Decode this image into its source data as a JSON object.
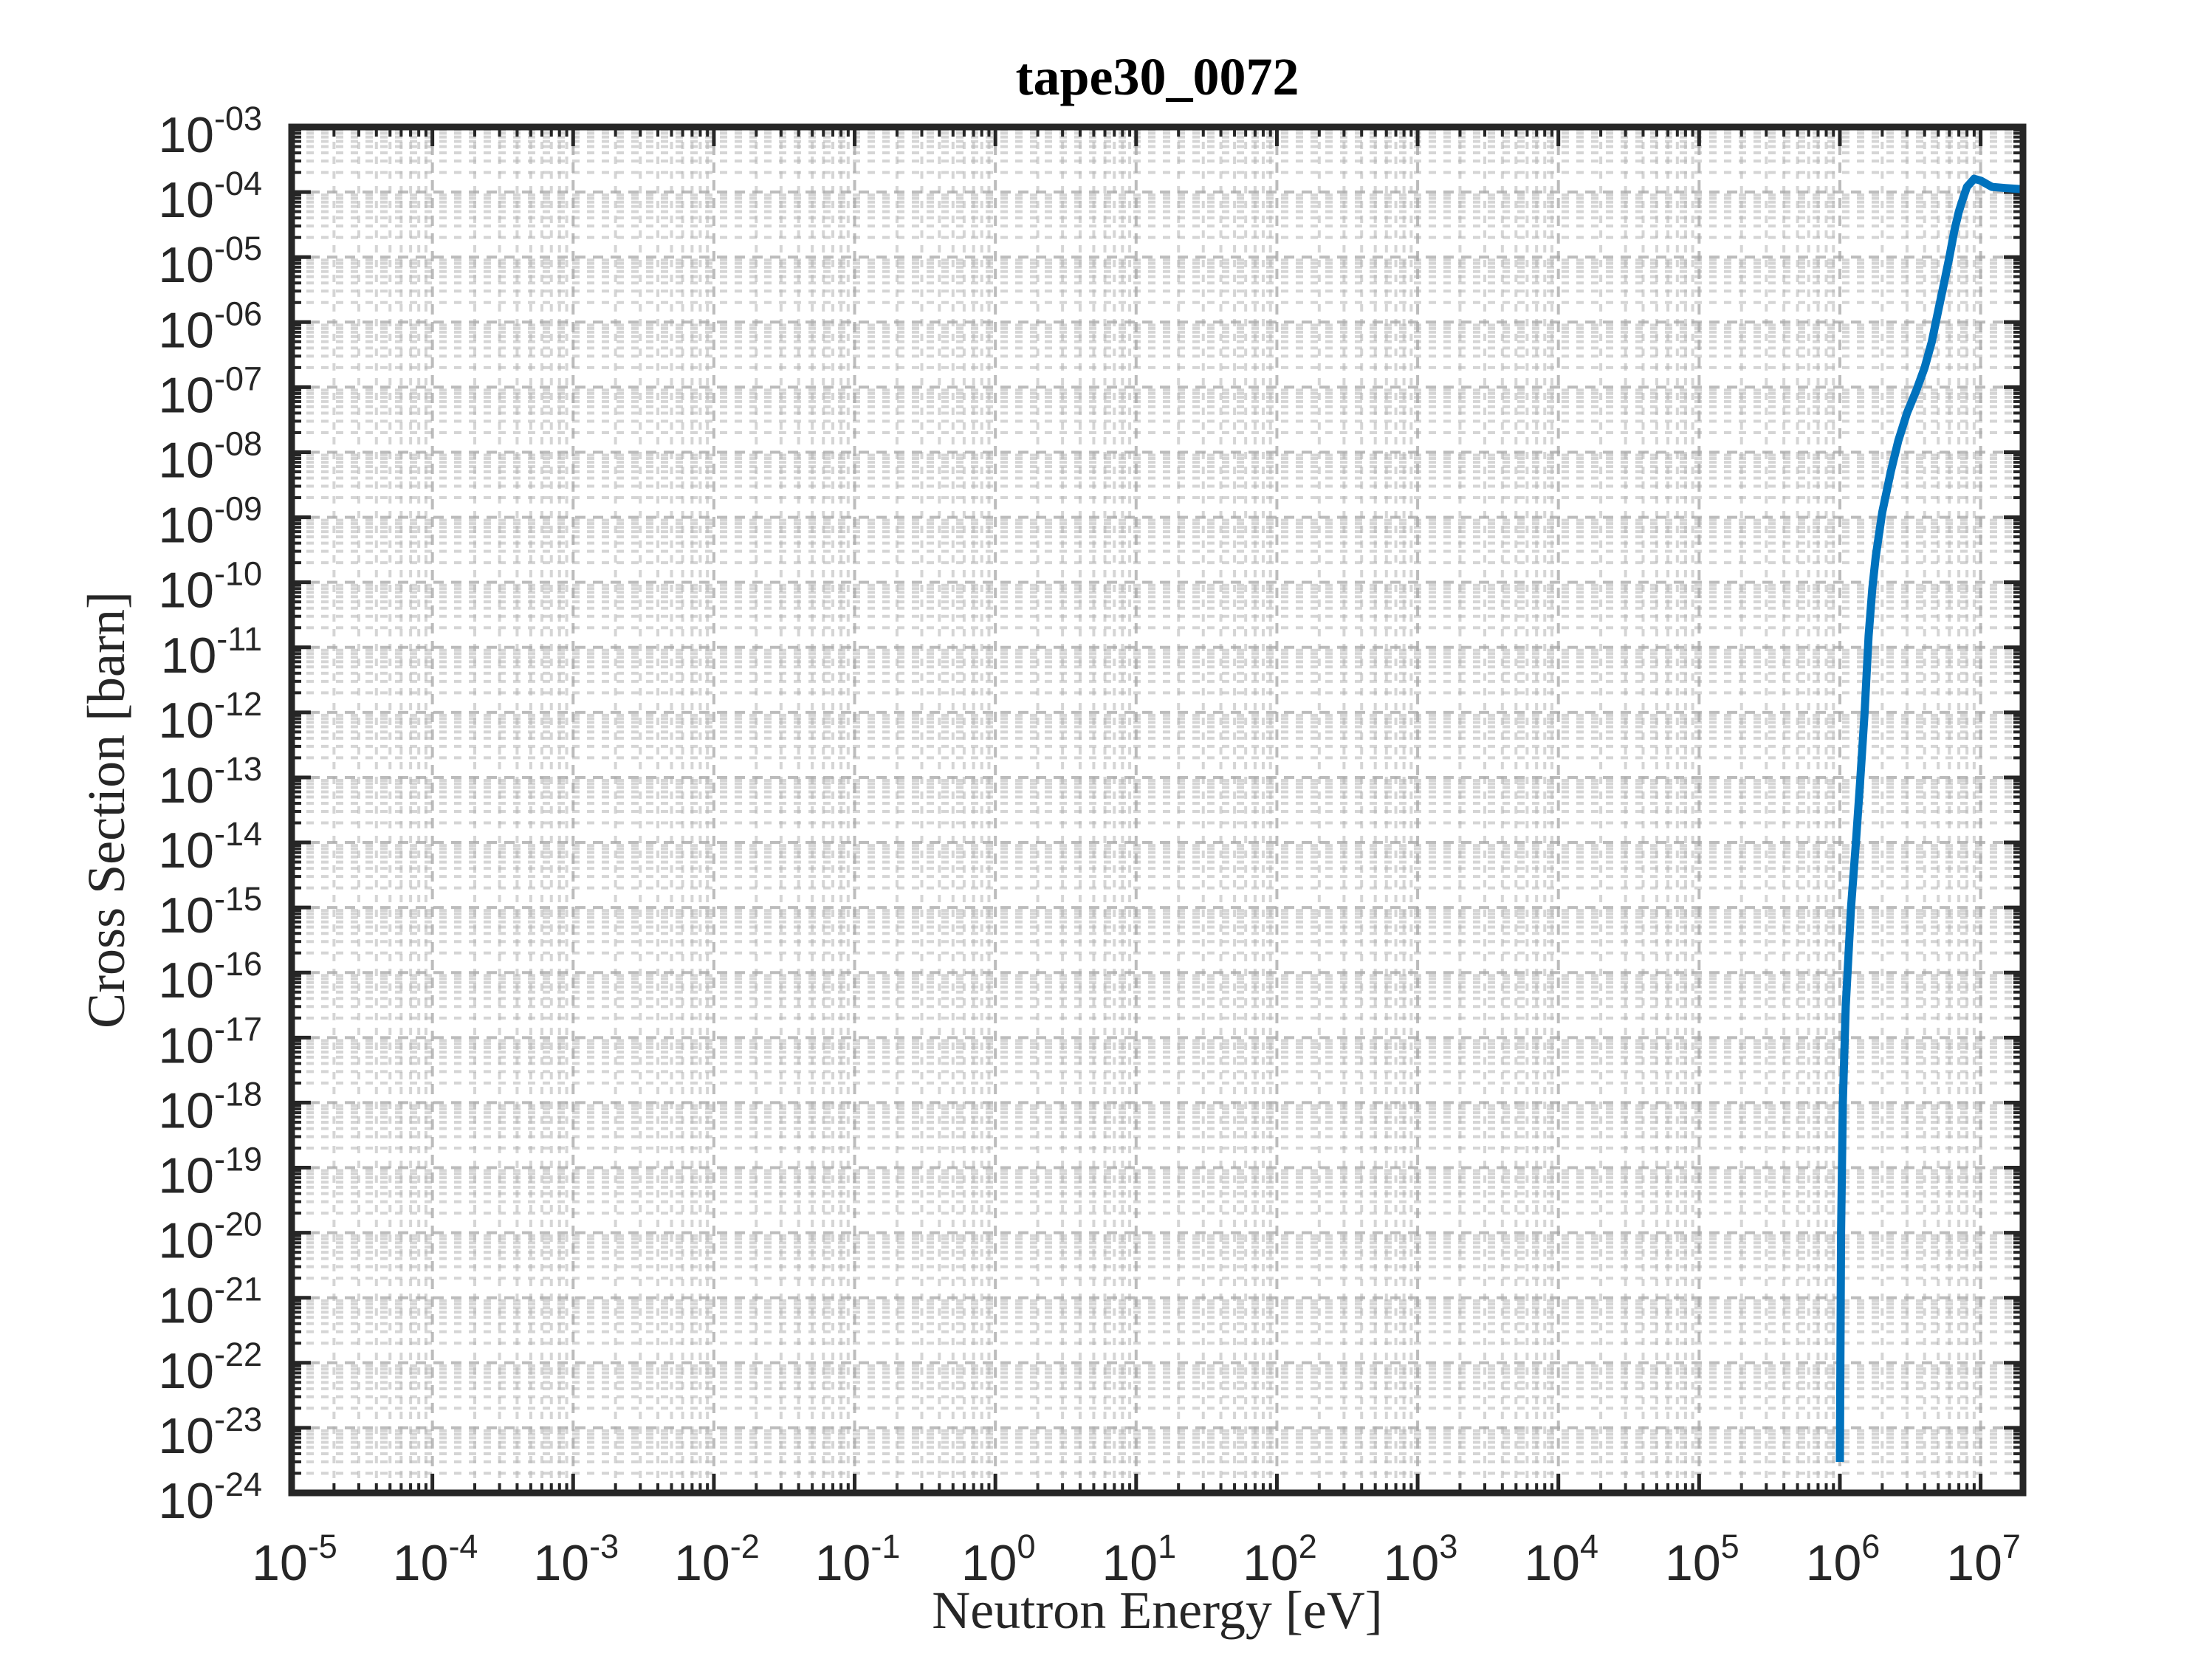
{
  "chart_data": {
    "type": "line",
    "title": "tape30_0072",
    "xlabel": "Neutron Energy [eV]",
    "ylabel": "Cross Section [barn]",
    "xscale": "log",
    "yscale": "log",
    "xlim": [
      1e-05,
      20000000.0
    ],
    "ylim": [
      1e-24,
      0.001
    ],
    "grid": "on (major and minor, dashed gray)",
    "box": "on",
    "line_color": "#0072BD",
    "x_ticks": [
      {
        "base": "10",
        "exp": "-5",
        "value": 1e-05
      },
      {
        "base": "10",
        "exp": "-4",
        "value": 0.0001
      },
      {
        "base": "10",
        "exp": "-3",
        "value": 0.001
      },
      {
        "base": "10",
        "exp": "-2",
        "value": 0.01
      },
      {
        "base": "10",
        "exp": "-1",
        "value": 0.1
      },
      {
        "base": "10",
        "exp": "0",
        "value": 1
      },
      {
        "base": "10",
        "exp": "1",
        "value": 10
      },
      {
        "base": "10",
        "exp": "2",
        "value": 100
      },
      {
        "base": "10",
        "exp": "3",
        "value": 1000
      },
      {
        "base": "10",
        "exp": "4",
        "value": 10000.0
      },
      {
        "base": "10",
        "exp": "5",
        "value": 100000.0
      },
      {
        "base": "10",
        "exp": "6",
        "value": 1000000.0
      },
      {
        "base": "10",
        "exp": "7",
        "value": 10000000.0
      }
    ],
    "y_ticks": [
      {
        "base": "10",
        "exp": "-03",
        "value": 0.001
      },
      {
        "base": "10",
        "exp": "-04",
        "value": 0.0001
      },
      {
        "base": "10",
        "exp": "-05",
        "value": 1e-05
      },
      {
        "base": "10",
        "exp": "-06",
        "value": 1e-06
      },
      {
        "base": "10",
        "exp": "-07",
        "value": 1e-07
      },
      {
        "base": "10",
        "exp": "-08",
        "value": 1e-08
      },
      {
        "base": "10",
        "exp": "-09",
        "value": 1e-09
      },
      {
        "base": "10",
        "exp": "-10",
        "value": 1e-10
      },
      {
        "base": "10",
        "exp": "-11",
        "value": 1e-11
      },
      {
        "base": "10",
        "exp": "-12",
        "value": 1e-12
      },
      {
        "base": "10",
        "exp": "-13",
        "value": 1e-13
      },
      {
        "base": "10",
        "exp": "-14",
        "value": 1e-14
      },
      {
        "base": "10",
        "exp": "-15",
        "value": 1e-15
      },
      {
        "base": "10",
        "exp": "-16",
        "value": 1e-16
      },
      {
        "base": "10",
        "exp": "-17",
        "value": 1e-17
      },
      {
        "base": "10",
        "exp": "-18",
        "value": 1e-18
      },
      {
        "base": "10",
        "exp": "-19",
        "value": 1e-19
      },
      {
        "base": "10",
        "exp": "-20",
        "value": 1e-20
      },
      {
        "base": "10",
        "exp": "-21",
        "value": 1e-21
      },
      {
        "base": "10",
        "exp": "-22",
        "value": 1e-22
      },
      {
        "base": "10",
        "exp": "-23",
        "value": 1e-23
      },
      {
        "base": "10",
        "exp": "-24",
        "value": 1e-24
      }
    ],
    "series": [
      {
        "x": [
          1000000.0,
          1020000.0,
          1050000.0,
          1100000.0,
          1200000.0,
          1300000.0,
          1400000.0,
          1500000.0,
          1600000.0,
          1700000.0,
          1800000.0,
          2000000.0,
          2300000.0,
          2600000.0,
          3000000.0,
          3500000.0,
          4000000.0,
          4500000.0,
          5000000.0,
          5500000.0,
          6000000.0,
          6500000.0,
          7000000.0,
          7500000.0,
          8000000.0,
          9000000.0,
          10000000.0,
          12000000.0,
          15000000.0,
          20000000.0
        ],
        "y": [
          3e-24,
          1e-20,
          1e-18,
          3e-17,
          1e-15,
          1e-14,
          1e-13,
          1e-12,
          1.5e-11,
          8e-11,
          2.5e-10,
          1.2e-09,
          5e-09,
          1.5e-08,
          4e-08,
          9e-08,
          2e-07,
          5e-07,
          1.5e-06,
          4e-06,
          1e-05,
          2.5e-05,
          5e-05,
          8e-05,
          0.00012,
          0.00016,
          0.00015,
          0.00012,
          0.000115,
          0.00011
        ]
      }
    ]
  }
}
